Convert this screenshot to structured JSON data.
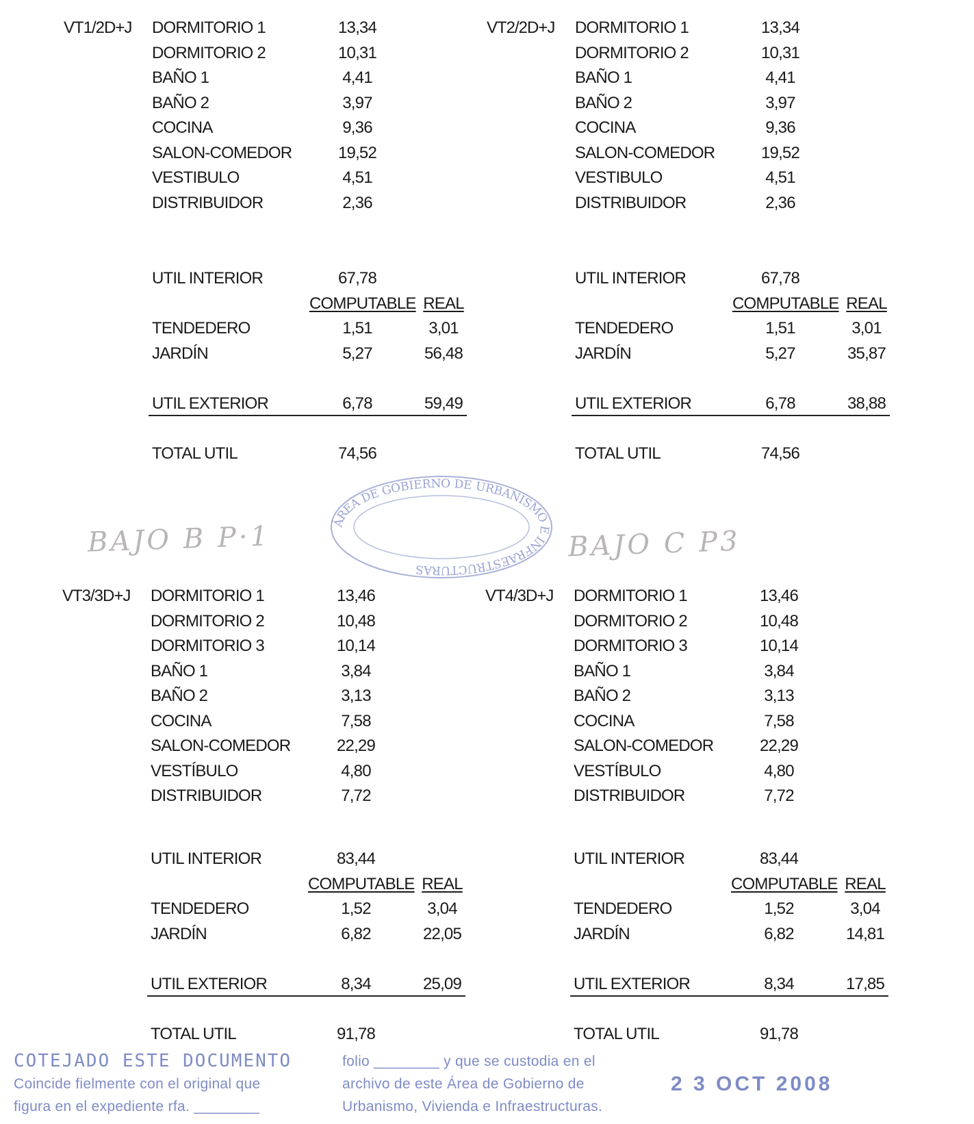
{
  "blocks": [
    {
      "code": "VT1/2D+J",
      "rooms": [
        {
          "label": "DORMITORIO 1",
          "value": "13,34"
        },
        {
          "label": "DORMITORIO 2",
          "value": "10,31"
        },
        {
          "label": "BAÑO 1",
          "value": "4,41"
        },
        {
          "label": "BAÑO 2",
          "value": "3,97"
        },
        {
          "label": "COCINA",
          "value": "9,36"
        },
        {
          "label": "SALON-COMEDOR",
          "value": "19,52"
        },
        {
          "label": "VESTIBULO",
          "value": "4,51"
        },
        {
          "label": "DISTRIBUIDOR",
          "value": "2,36"
        }
      ],
      "util_interior": {
        "label": "UTIL INTERIOR",
        "value": "67,78"
      },
      "headers": {
        "computable": "COMPUTABLE",
        "real": "REAL"
      },
      "exterior": [
        {
          "label": "TENDEDERO",
          "computable": "1,51",
          "real": "3,01"
        },
        {
          "label": "JARDÍN",
          "computable": "5,27",
          "real": "56,48"
        }
      ],
      "util_exterior": {
        "label": "UTIL EXTERIOR",
        "computable": "6,78",
        "real": "59,49"
      },
      "total_util": {
        "label": "TOTAL UTIL",
        "value": "74,56"
      }
    },
    {
      "code": "VT2/2D+J",
      "rooms": [
        {
          "label": "DORMITORIO 1",
          "value": "13,34"
        },
        {
          "label": "DORMITORIO 2",
          "value": "10,31"
        },
        {
          "label": "BAÑO 1",
          "value": "4,41"
        },
        {
          "label": "BAÑO 2",
          "value": "3,97"
        },
        {
          "label": "COCINA",
          "value": "9,36"
        },
        {
          "label": "SALON-COMEDOR",
          "value": "19,52"
        },
        {
          "label": "VESTIBULO",
          "value": "4,51"
        },
        {
          "label": "DISTRIBUIDOR",
          "value": "2,36"
        }
      ],
      "util_interior": {
        "label": "UTIL INTERIOR",
        "value": "67,78"
      },
      "headers": {
        "computable": "COMPUTABLE",
        "real": "REAL"
      },
      "exterior": [
        {
          "label": "TENDEDERO",
          "computable": "1,51",
          "real": "3,01"
        },
        {
          "label": "JARDÍN",
          "computable": "5,27",
          "real": "35,87"
        }
      ],
      "util_exterior": {
        "label": "UTIL EXTERIOR",
        "computable": "6,78",
        "real": "38,88"
      },
      "total_util": {
        "label": "TOTAL UTIL",
        "value": "74,56"
      }
    },
    {
      "code": "VT3/3D+J",
      "rooms": [
        {
          "label": "DORMITORIO 1",
          "value": "13,46"
        },
        {
          "label": "DORMITORIO 2",
          "value": "10,48"
        },
        {
          "label": "DORMITORIO 3",
          "value": "10,14"
        },
        {
          "label": "BAÑO 1",
          "value": "3,84"
        },
        {
          "label": "BAÑO 2",
          "value": "3,13"
        },
        {
          "label": "COCINA",
          "value": "7,58"
        },
        {
          "label": "SALON-COMEDOR",
          "value": "22,29"
        },
        {
          "label": "VESTÍBULO",
          "value": "4,80"
        },
        {
          "label": "DISTRIBUIDOR",
          "value": "7,72"
        }
      ],
      "util_interior": {
        "label": "UTIL INTERIOR",
        "value": "83,44"
      },
      "headers": {
        "computable": "COMPUTABLE",
        "real": "REAL"
      },
      "exterior": [
        {
          "label": "TENDEDERO",
          "computable": "1,52",
          "real": "3,04"
        },
        {
          "label": "JARDÍN",
          "computable": "6,82",
          "real": "22,05"
        }
      ],
      "util_exterior": {
        "label": "UTIL EXTERIOR",
        "computable": "8,34",
        "real": "25,09"
      },
      "total_util": {
        "label": "TOTAL UTIL",
        "value": "91,78"
      }
    },
    {
      "code": "VT4/3D+J",
      "rooms": [
        {
          "label": "DORMITORIO 1",
          "value": "13,46"
        },
        {
          "label": "DORMITORIO 2",
          "value": "10,48"
        },
        {
          "label": "DORMITORIO 3",
          "value": "10,14"
        },
        {
          "label": "BAÑO 1",
          "value": "3,84"
        },
        {
          "label": "BAÑO 2",
          "value": "3,13"
        },
        {
          "label": "COCINA",
          "value": "7,58"
        },
        {
          "label": "SALON-COMEDOR",
          "value": "22,29"
        },
        {
          "label": "VESTÍBULO",
          "value": "4,80"
        },
        {
          "label": "DISTRIBUIDOR",
          "value": "7,72"
        }
      ],
      "util_interior": {
        "label": "UTIL INTERIOR",
        "value": "83,44"
      },
      "headers": {
        "computable": "COMPUTABLE",
        "real": "REAL"
      },
      "exterior": [
        {
          "label": "TENDEDERO",
          "computable": "1,52",
          "real": "3,04"
        },
        {
          "label": "JARDÍN",
          "computable": "6,82",
          "real": "14,81"
        }
      ],
      "util_exterior": {
        "label": "UTIL EXTERIOR",
        "computable": "8,34",
        "real": "17,85"
      },
      "total_util": {
        "label": "TOTAL UTIL",
        "value": "91,78"
      }
    }
  ],
  "handwritten_notes": [
    "BAJO B P·1",
    "BAJO C P3"
  ],
  "stamp": {
    "title": "COTEJADO ESTE DOCUMENTO",
    "lines": [
      "Coincide fielmente con el original que",
      "figura en el expediente rfa. ________",
      "folio ________ y que se custodia en el",
      "archivo de este Área de Gobierno de",
      "Urbanismo, Vivienda e Infraestructuras."
    ],
    "date": "2 3 OCT 2008",
    "seal_text": "ÁREA DE GOBIERNO DE URBANISMO E INFRAESTRUCTURAS",
    "color": "#5f6fb8"
  }
}
